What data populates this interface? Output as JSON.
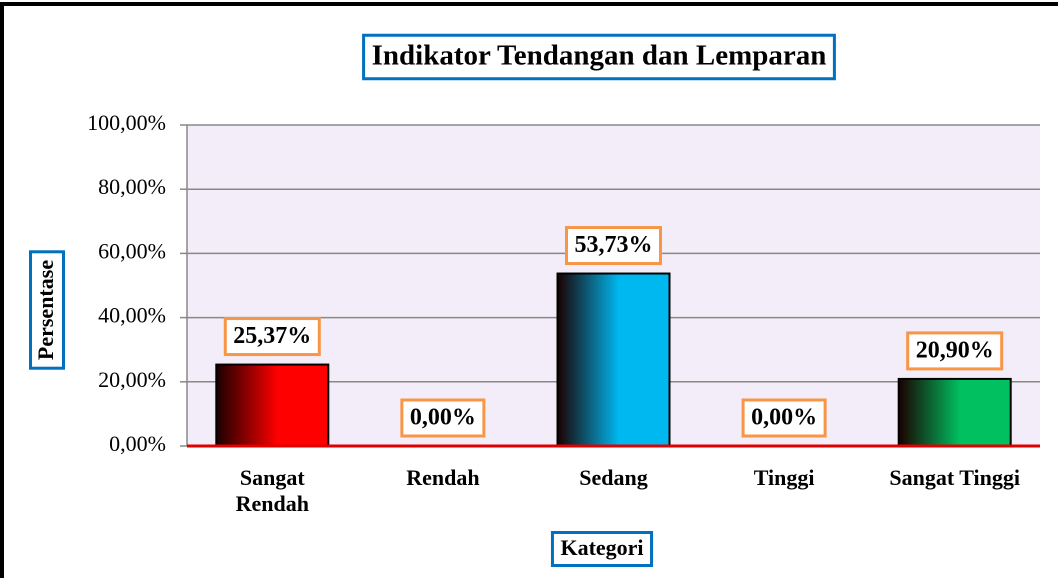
{
  "chart_data": {
    "type": "bar",
    "title": "Indikator Tendangan dan Lemparan",
    "y_label": "Persentase",
    "x_label": "Kategori",
    "categories": [
      "Sangat Rendah",
      "Rendah",
      "Sedang",
      "Tinggi",
      "Sangat Tinggi"
    ],
    "values": [
      25.37,
      0,
      53.73,
      0,
      20.9
    ],
    "value_labels": [
      "25,37%",
      "0,00%",
      "53,73%",
      "0,00%",
      "20,90%"
    ],
    "colors": [
      "#ff0000",
      "#ff0000",
      "#00b8f0",
      "#00b8f0",
      "#00c060"
    ],
    "ylim": [
      0,
      100
    ],
    "yticks": [
      {
        "value": 0,
        "label": "0,00%"
      },
      {
        "value": 20,
        "label": "20,00%"
      },
      {
        "value": 40,
        "label": "40,00%"
      },
      {
        "value": 60,
        "label": "60,00%"
      },
      {
        "value": 80,
        "label": "80,00%"
      },
      {
        "value": 100,
        "label": "100,00%"
      }
    ],
    "grid": true
  }
}
